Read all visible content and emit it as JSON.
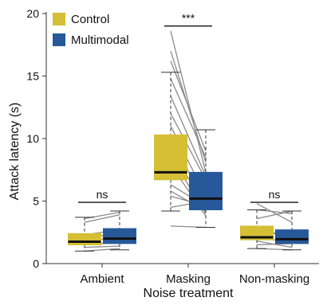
{
  "chart_data": {
    "type": "box",
    "xlabel": "Noise treatment",
    "ylabel": "Attack latency (s)",
    "ylim": [
      0,
      20
    ],
    "yticks": [
      0,
      5,
      10,
      15,
      20
    ],
    "categories": [
      "Ambient",
      "Masking",
      "Non-masking"
    ],
    "legend": {
      "placement": "top-left",
      "entries": [
        "Control",
        "Multimodal"
      ]
    },
    "colors": {
      "Control": "#d4bf35",
      "Multimodal": "#27599a",
      "pair_line": "#8a8a8a",
      "median": "#111111"
    },
    "significance": [
      "ns",
      "***",
      "ns"
    ],
    "series": [
      {
        "name": "Control",
        "boxes": [
          {
            "whisker_low": 1.0,
            "q1": 1.5,
            "median": 1.75,
            "q3": 2.4,
            "whisker_high": 3.7
          },
          {
            "whisker_low": 4.2,
            "q1": 6.7,
            "median": 7.3,
            "q3": 10.3,
            "whisker_high": 15.3
          },
          {
            "whisker_low": 1.2,
            "q1": 1.9,
            "median": 2.1,
            "q3": 3.0,
            "whisker_high": 4.3
          }
        ]
      },
      {
        "name": "Multimodal",
        "boxes": [
          {
            "whisker_low": 1.1,
            "q1": 1.6,
            "median": 2.0,
            "q3": 2.8,
            "whisker_high": 4.2
          },
          {
            "whisker_low": 2.9,
            "q1": 4.3,
            "median": 5.2,
            "q3": 7.3,
            "whisker_high": 10.7
          },
          {
            "whisker_low": 1.1,
            "q1": 1.6,
            "median": 1.95,
            "q3": 2.7,
            "whisker_high": 4.2
          }
        ]
      }
    ],
    "paired_lines": [
      [
        [
          1.0,
          1.2
        ],
        [
          1.3,
          1.4
        ],
        [
          1.5,
          1.7
        ],
        [
          1.7,
          2.2
        ],
        [
          2.0,
          2.5
        ],
        [
          2.3,
          2.7
        ],
        [
          3.3,
          3.9
        ],
        [
          3.6,
          4.1
        ]
      ],
      [
        [
          18.6,
          7.3
        ],
        [
          17.0,
          8.1
        ],
        [
          16.2,
          9.0
        ],
        [
          14.8,
          8.5
        ],
        [
          13.4,
          7.0
        ],
        [
          12.0,
          6.7
        ],
        [
          11.0,
          5.4
        ],
        [
          10.2,
          4.6
        ],
        [
          9.4,
          4.3
        ],
        [
          8.6,
          4.0
        ],
        [
          7.9,
          3.8
        ],
        [
          6.3,
          4.6
        ],
        [
          5.8,
          4.2
        ],
        [
          5.4,
          4.6
        ],
        [
          4.5,
          5.0
        ],
        [
          3.0,
          2.9
        ]
      ],
      [
        [
          4.8,
          3.3
        ],
        [
          4.3,
          4.0
        ],
        [
          3.6,
          4.2
        ],
        [
          2.7,
          2.1
        ],
        [
          2.3,
          2.6
        ],
        [
          2.0,
          1.8
        ],
        [
          1.8,
          1.3
        ],
        [
          1.5,
          1.6
        ],
        [
          1.2,
          1.1
        ]
      ]
    ]
  }
}
